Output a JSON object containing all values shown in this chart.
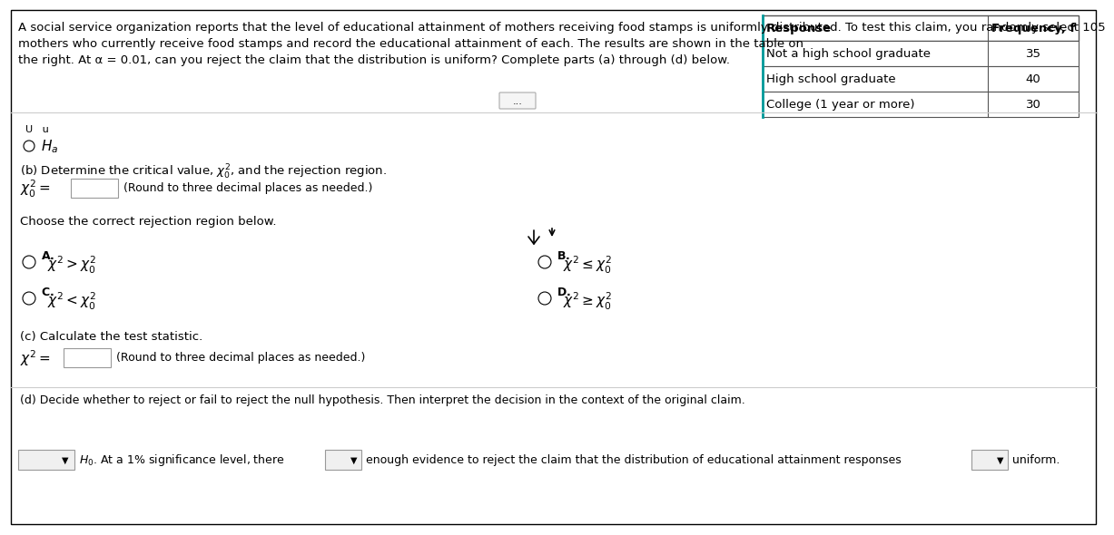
{
  "background_color": "#ffffff",
  "border_color": "#000000",
  "para_line1": "A social service organization reports that the level of educational attainment of mothers receiving food stamps is uniformly distributed. To test this claim, you randomly select 105",
  "para_line2": "mothers who currently receive food stamps and record the educational attainment of each. The results are shown in the table on",
  "para_line3": "the right. At α = 0.01, can you reject the claim that the distribution is uniform? Complete parts (a) through (d) below.",
  "table_headers": [
    "Response",
    "Frequency, f"
  ],
  "table_rows": [
    [
      "Not a high school graduate",
      "35"
    ],
    [
      "High school graduate",
      "40"
    ],
    [
      "College (1 year or more)",
      "30"
    ]
  ],
  "text_color": "#000000",
  "text_color_blue": "#1a1aaa",
  "gray_bg": "#f2f2f2",
  "separator_color": "#cccccc",
  "box_border": "#999999",
  "table_border": "#555555",
  "dots_text": "...",
  "U_text": "U    u",
  "ha_text": "H_a",
  "part_b": "(b) Determine the critical value, $\\chi^2_0$, and the rejection region.",
  "chi0_label": "$\\chi^2_0 = $",
  "round_note": "(Round to three decimal places as needed.)",
  "choose_text": "Choose the correct rejection region below.",
  "opt_A_label": "A.",
  "opt_A_expr": "$\\chi^2 > \\chi^2_0$",
  "opt_B_label": "B.",
  "opt_B_expr": "$\\chi^2 \\leq \\chi^2_0$",
  "opt_C_label": "C.",
  "opt_C_expr": "$\\chi^2 < \\chi^2_0$",
  "opt_D_label": "D.",
  "opt_D_expr": "$\\chi^2 \\geq \\chi^2_0$",
  "part_c": "(c) Calculate the test statistic.",
  "chi_label": "$\\chi^2 = $",
  "round_note2": "(Round to three decimal places as needed.)",
  "part_d": "(d) Decide whether to reject or fail to reject the null hypothesis. Then interpret the decision in the context of the original claim.",
  "part_d_text1": "$H_0$. At a 1% significance level, there",
  "part_d_text2": "enough evidence to reject the claim that the distribution of educational attainment responses",
  "part_d_text3": "uniform.",
  "cursor_arrow": "▲"
}
